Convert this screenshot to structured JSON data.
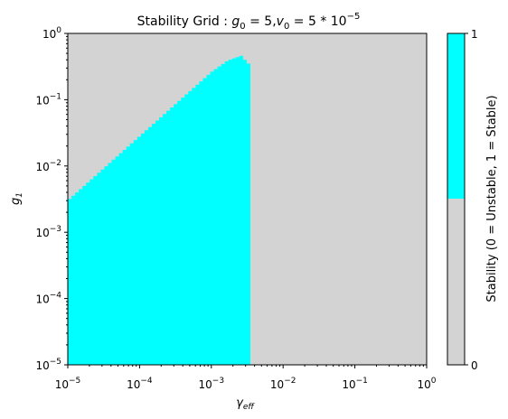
{
  "chart_data": {
    "type": "heatmap",
    "title": {
      "prefix": "Stability Grid : ",
      "g_sym": "g",
      "g_sub": "0",
      "g_rest": " = 5,",
      "v_sym": "v",
      "v_sub": "0",
      "v_rest": " = 5 * 10",
      "v_exp": "−5"
    },
    "xlabel": {
      "sym": "γ",
      "sub": "eff"
    },
    "ylabel": {
      "sym": "g",
      "sub": "1"
    },
    "x_scale": "log",
    "y_scale": "log",
    "xlim": [
      1e-05,
      1.0
    ],
    "ylim": [
      1e-05,
      1.0
    ],
    "x_ticks": [
      {
        "value": 1e-05,
        "base": "10",
        "exp": "−5"
      },
      {
        "value": 0.0001,
        "base": "10",
        "exp": "−4"
      },
      {
        "value": 0.001,
        "base": "10",
        "exp": "−3"
      },
      {
        "value": 0.01,
        "base": "10",
        "exp": "−2"
      },
      {
        "value": 0.1,
        "base": "10",
        "exp": "−1"
      },
      {
        "value": 1,
        "base": "10",
        "exp": "0"
      }
    ],
    "y_ticks": [
      {
        "value": 1e-05,
        "base": "10",
        "exp": "−5"
      },
      {
        "value": 0.0001,
        "base": "10",
        "exp": "−4"
      },
      {
        "value": 0.001,
        "base": "10",
        "exp": "−3"
      },
      {
        "value": 0.01,
        "base": "10",
        "exp": "−2"
      },
      {
        "value": 0.1,
        "base": "10",
        "exp": "−1"
      },
      {
        "value": 1,
        "base": "10",
        "exp": "0"
      }
    ],
    "grid": false,
    "stable_region": {
      "x_min": 1e-05,
      "x_max": 0.0035,
      "y_min": 1e-05,
      "lower_edge_boundary": [
        [
          1e-05,
          0.003
        ],
        [
          0.0001,
          0.028
        ],
        [
          0.001,
          0.26
        ],
        [
          0.0017,
          0.39
        ],
        [
          0.0022,
          0.43
        ],
        [
          0.0026,
          0.46
        ],
        [
          0.003,
          0.39
        ],
        [
          0.0035,
          0.33
        ]
      ]
    },
    "colors": {
      "stable": "#00ffff",
      "unstable": "#d3d3d3"
    },
    "colorbar": {
      "label": "Stability (0 = Unstable, 1 = Stable)",
      "ticks": [
        "0",
        "1"
      ],
      "split": 0.5
    }
  }
}
